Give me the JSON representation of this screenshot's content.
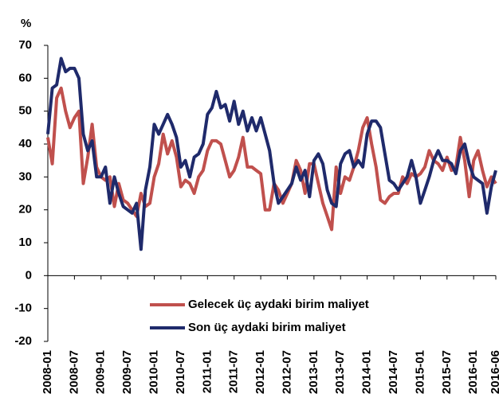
{
  "chart_data": {
    "type": "line",
    "y_axis_label": "%",
    "categories": [
      "2008-01",
      null,
      null,
      null,
      null,
      null,
      "2008-07",
      null,
      null,
      null,
      null,
      null,
      "2009-01",
      null,
      null,
      null,
      null,
      null,
      "2009-07",
      null,
      null,
      null,
      null,
      null,
      "2010-01",
      null,
      null,
      null,
      null,
      null,
      "2010-07",
      null,
      null,
      null,
      null,
      null,
      "2011-01",
      null,
      null,
      null,
      null,
      null,
      "2011-07",
      null,
      null,
      null,
      null,
      null,
      "2012-01",
      null,
      null,
      null,
      null,
      null,
      "2012-07",
      null,
      null,
      null,
      null,
      null,
      "2013-01",
      null,
      null,
      null,
      null,
      null,
      "2013-07",
      null,
      null,
      null,
      null,
      null,
      "2014-01",
      null,
      null,
      null,
      null,
      null,
      "2014-07",
      null,
      null,
      null,
      null,
      null,
      "2015-01",
      null,
      null,
      null,
      null,
      null,
      "2015-07",
      null,
      null,
      null,
      null,
      null,
      "2016-01",
      null,
      null,
      null,
      null,
      "2016-06"
    ],
    "series": [
      {
        "name": "Gelecek üç aydaki birim maliyet",
        "color": "#c0504d",
        "values": [
          42,
          34,
          54,
          57,
          50,
          45,
          48,
          50,
          28,
          36,
          46,
          33,
          30,
          29,
          30,
          21,
          28,
          23,
          22,
          20,
          18,
          25,
          21,
          22,
          30,
          34,
          43,
          37,
          41,
          36,
          27,
          29,
          28,
          25,
          30,
          32,
          38,
          41,
          41,
          40,
          35,
          30,
          32,
          36,
          42,
          33,
          33,
          32,
          31,
          20,
          20,
          28,
          26,
          22,
          25,
          28,
          35,
          32,
          25,
          34,
          34,
          28,
          22,
          18,
          14,
          33,
          25,
          30,
          29,
          33,
          38,
          45,
          48,
          40,
          33,
          23,
          22,
          24,
          25,
          25,
          30,
          28,
          31,
          30,
          31,
          33,
          38,
          35,
          34,
          32,
          36,
          32,
          33,
          42,
          35,
          24,
          35,
          38,
          32,
          27,
          30,
          28
        ]
      },
      {
        "name": "Son üç aydaki birim maliyet",
        "color": "#1f2a6b",
        "values": [
          43,
          57,
          58,
          66,
          62,
          63,
          63,
          60,
          43,
          38,
          41,
          30,
          30,
          33,
          22,
          30,
          25,
          21,
          20,
          19,
          22,
          8,
          26,
          33,
          46,
          43,
          46,
          49,
          46,
          42,
          33,
          35,
          30,
          36,
          37,
          40,
          49,
          51,
          56,
          51,
          52,
          47,
          53,
          46,
          50,
          44,
          48,
          44,
          48,
          43,
          38,
          28,
          22,
          24,
          26,
          28,
          33,
          29,
          32,
          24,
          35,
          37,
          34,
          26,
          22,
          21,
          34,
          37,
          38,
          33,
          35,
          33,
          43,
          47,
          47,
          45,
          37,
          29,
          28,
          26,
          28,
          30,
          35,
          30,
          22,
          26,
          30,
          35,
          38,
          35,
          35,
          34,
          31,
          38,
          40,
          34,
          30,
          29,
          28,
          19,
          27,
          32
        ]
      }
    ],
    "ylim": [
      -20,
      70
    ],
    "yticks": [
      -20,
      -10,
      0,
      10,
      20,
      30,
      40,
      50,
      60,
      70
    ],
    "grid": false
  }
}
